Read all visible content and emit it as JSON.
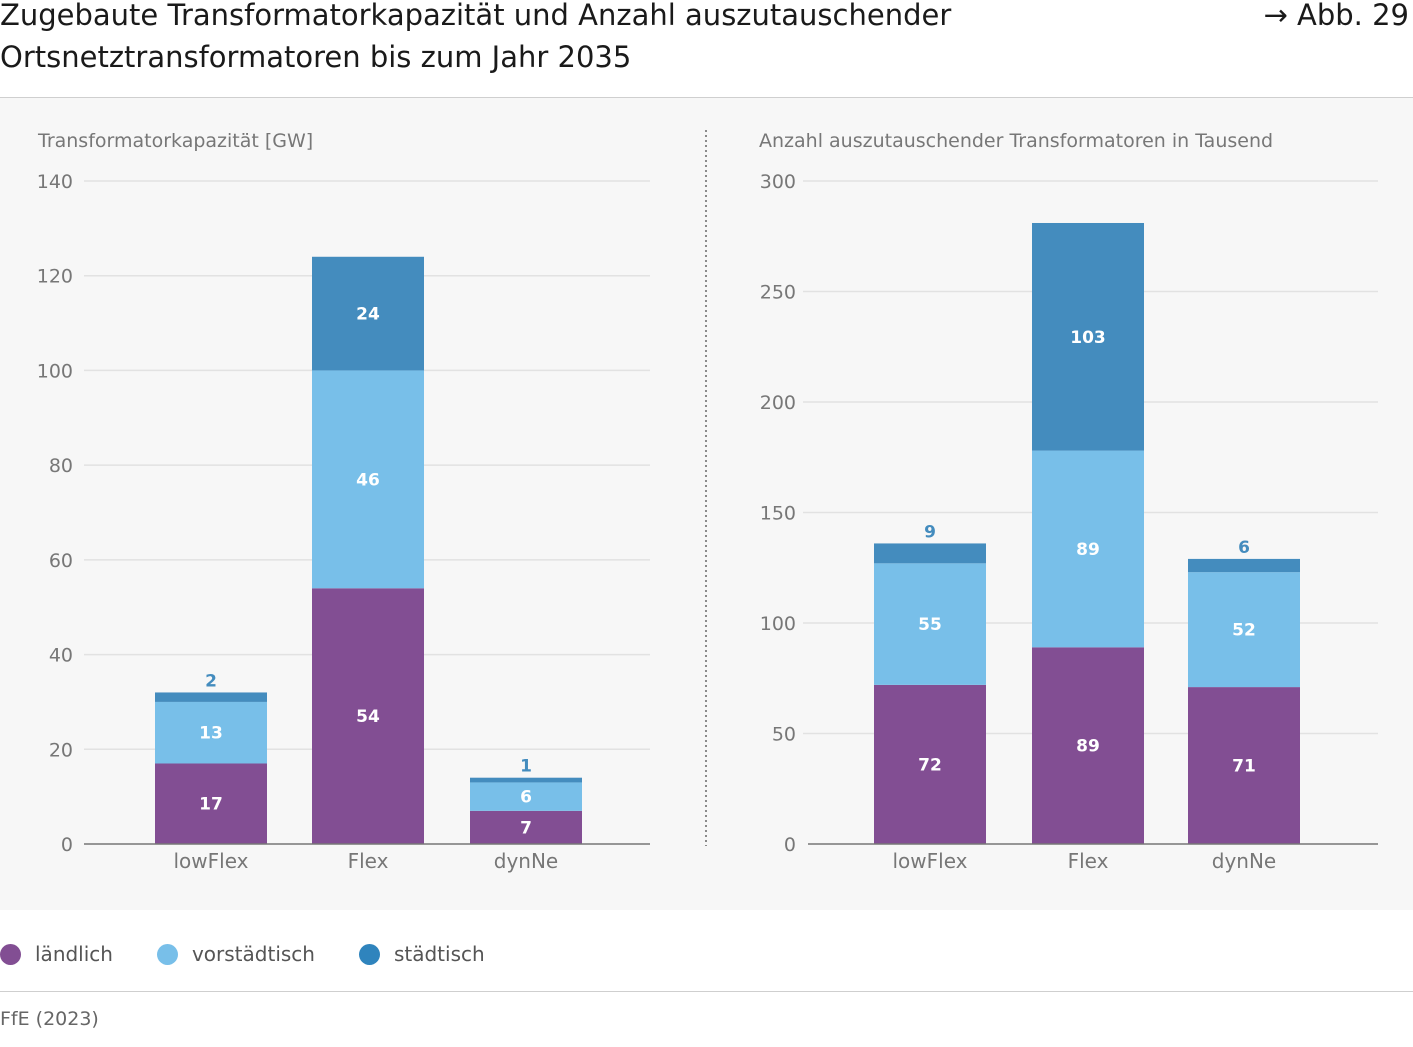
{
  "header": {
    "title_line1": "Zugebaute Transformatorkapazität und Anzahl auszutauschender",
    "title_line2": "Ortsnetztransformatoren bis zum Jahr 2035",
    "figure_ref": "→ Abb. 29"
  },
  "legend": [
    {
      "label": "ländlich",
      "color": "#824e93"
    },
    {
      "label": "vorstädtisch",
      "color": "#78bfe9"
    },
    {
      "label": "städtisch",
      "color": "#2f84bd"
    }
  ],
  "source": "FfE (2023)",
  "chart_data": [
    {
      "type": "bar",
      "stacked": true,
      "title": "Transformatorkapazität [GW]",
      "categories": [
        "lowFlex",
        "Flex",
        "dynNe"
      ],
      "series": [
        {
          "name": "ländlich",
          "values": [
            17,
            54,
            7
          ],
          "color": "#824e93"
        },
        {
          "name": "vorstädtisch",
          "values": [
            13,
            46,
            6
          ],
          "color": "#78bfe9"
        },
        {
          "name": "städtisch",
          "values": [
            2,
            24,
            1
          ],
          "color": "#448cbe"
        }
      ],
      "ylim": [
        0,
        140
      ],
      "yticks": [
        0,
        20,
        40,
        60,
        80,
        100,
        120,
        140
      ],
      "grid": true
    },
    {
      "type": "bar",
      "stacked": true,
      "title": "Anzahl auszutauschender Transformatoren in Tausend",
      "categories": [
        "lowFlex",
        "Flex",
        "dynNe"
      ],
      "series": [
        {
          "name": "ländlich",
          "values": [
            72,
            89,
            71
          ],
          "color": "#824e93"
        },
        {
          "name": "vorstädtisch",
          "values": [
            55,
            89,
            52
          ],
          "color": "#78bfe9"
        },
        {
          "name": "städtisch",
          "values": [
            9,
            103,
            6
          ],
          "color": "#448cbe"
        }
      ],
      "ylim": [
        0,
        300
      ],
      "yticks": [
        0,
        50,
        100,
        150,
        200,
        250,
        300
      ],
      "grid": true
    }
  ]
}
